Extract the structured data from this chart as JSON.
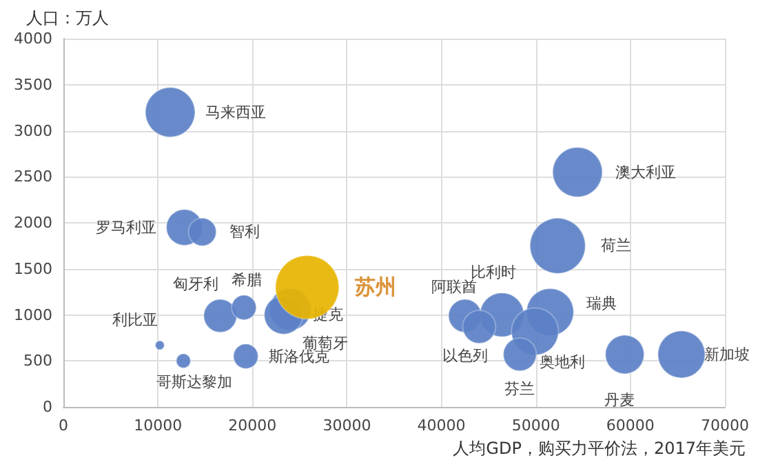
{
  "chart_data": {
    "type": "bubble",
    "xlabel": "人均GDP，购买力平价法，2017年美元",
    "ylabel": "人口：万人",
    "xlim": [
      0,
      70000
    ],
    "xticks": [
      0,
      10000,
      20000,
      30000,
      40000,
      50000,
      60000,
      70000
    ],
    "ylim": [
      0,
      4000
    ],
    "yticks": [
      0,
      500,
      1000,
      1500,
      2000,
      2500,
      3000,
      3500,
      4000
    ],
    "grid": true,
    "series": [
      {
        "name": "马来西亚",
        "color": "#5b80c6",
        "x": [
          11300
        ],
        "values": [
          3200
        ],
        "sizes": [
          0.61
        ]
      },
      {
        "name": "罗马利亚",
        "color": "#5b80c6",
        "x": [
          12800
        ],
        "values": [
          1950
        ],
        "sizes": [
          0.32
        ]
      },
      {
        "name": "智利",
        "color": "#5b80c6",
        "x": [
          14700
        ],
        "values": [
          1900
        ],
        "sizes": [
          0.19
        ]
      },
      {
        "name": "匈牙利",
        "color": "#5b80c6",
        "x": [
          16600
        ],
        "values": [
          990
        ],
        "sizes": [
          0.27
        ]
      },
      {
        "name": "希腊",
        "color": "#5b80c6",
        "x": [
          19100
        ],
        "values": [
          1080
        ],
        "sizes": [
          0.15
        ]
      },
      {
        "name": "捷克",
        "color": "#5b80c6",
        "x": [
          24000
        ],
        "values": [
          1060
        ],
        "sizes": [
          0.43
        ]
      },
      {
        "name": "葡萄牙",
        "color": "#5b80c6",
        "x": [
          23300
        ],
        "values": [
          1000
        ],
        "sizes": [
          0.37
        ]
      },
      {
        "name": "利比亚",
        "color": "#5b80c6",
        "x": [
          10200
        ],
        "values": [
          670
        ],
        "sizes": [
          0.02
        ]
      },
      {
        "name": "哥斯达黎加",
        "color": "#5b80c6",
        "x": [
          12700
        ],
        "values": [
          500
        ],
        "sizes": [
          0.05
        ]
      },
      {
        "name": "斯洛伐克",
        "color": "#5b80c6",
        "x": [
          19300
        ],
        "values": [
          550
        ],
        "sizes": [
          0.15
        ]
      },
      {
        "name": "澳大利亚",
        "color": "#5b80c6",
        "x": [
          54400
        ],
        "values": [
          2550
        ],
        "sizes": [
          0.61
        ]
      },
      {
        "name": "荷兰",
        "color": "#5b80c6",
        "x": [
          52300
        ],
        "values": [
          1750
        ],
        "sizes": [
          0.76
        ]
      },
      {
        "name": "比利时",
        "color": "#5b80c6",
        "x": [
          46400
        ],
        "values": [
          1000
        ],
        "sizes": [
          0.48
        ]
      },
      {
        "name": "阿联酋",
        "color": "#5b80c6",
        "x": [
          42500
        ],
        "values": [
          990
        ],
        "sizes": [
          0.27
        ]
      },
      {
        "name": "以色列",
        "color": "#5b80c6",
        "x": [
          44000
        ],
        "values": [
          870
        ],
        "sizes": [
          0.27
        ]
      },
      {
        "name": "瑞典",
        "color": "#5b80c6",
        "x": [
          51500
        ],
        "values": [
          1030
        ],
        "sizes": [
          0.55
        ]
      },
      {
        "name": "奥地利",
        "color": "#5b80c6",
        "x": [
          49900
        ],
        "values": [
          820
        ],
        "sizes": [
          0.55
        ]
      },
      {
        "name": "芬兰",
        "color": "#5b80c6",
        "x": [
          48300
        ],
        "values": [
          570
        ],
        "sizes": [
          0.27
        ]
      },
      {
        "name": "丹麦",
        "color": "#5b80c6",
        "x": [
          59400
        ],
        "values": [
          570
        ],
        "sizes": [
          0.37
        ]
      },
      {
        "name": "新加坡",
        "color": "#5b80c6",
        "x": [
          65400
        ],
        "values": [
          570
        ],
        "sizes": [
          0.55
        ]
      },
      {
        "name": "苏州",
        "color": "#e8b400",
        "x": [
          25800
        ],
        "values": [
          1300
        ],
        "sizes": [
          1
        ]
      }
    ]
  }
}
